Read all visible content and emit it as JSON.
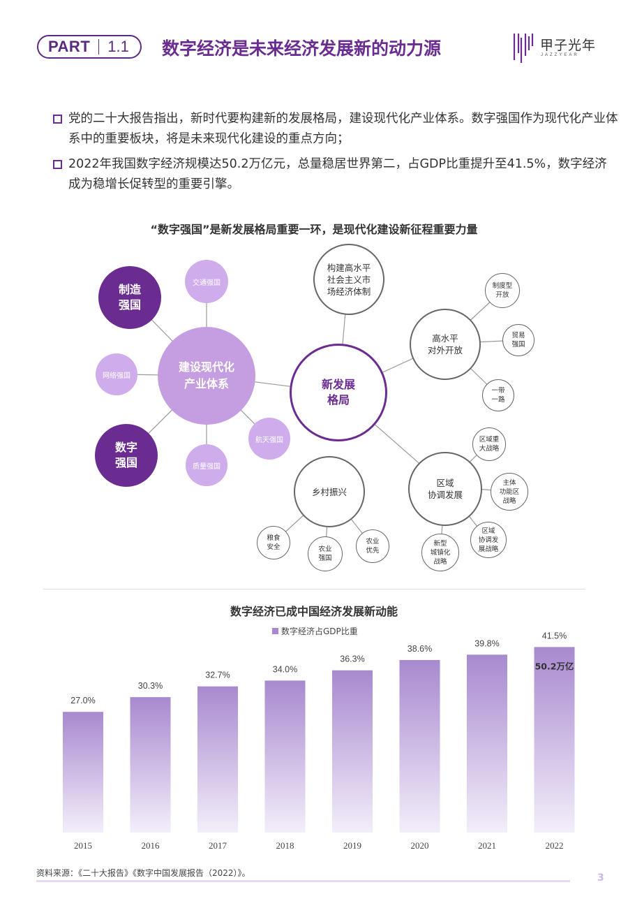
{
  "header": {
    "part_word": "PART",
    "part_num": "1.1",
    "title": "数字经济是未来经济发展新的动力源",
    "brand_cn": "甲子光年",
    "brand_en": "JAZZYEAR"
  },
  "bullets": [
    "党的二十大报告指出，新时代要构建新的发展格局，建设现代化产业体系。数字强国作为现代化产业体系中的重要板块，将是未来现代化建设的重点方向；",
    "2022年我国数字经济规模达50.2万亿元，总量稳居世界第二，占GDP比重提升至41.5%，数字经济成为稳增长促转型的重要引擎。"
  ],
  "diagram": {
    "title": "“数字强国”是新发展格局重要一环，是现代化建设新征程重要力量",
    "core": [
      "建设现代化",
      "产业体系"
    ],
    "manufacturing": [
      "制造",
      "强国"
    ],
    "digital": [
      "数字",
      "强国"
    ],
    "transport": "交通强国",
    "network": "网络强国",
    "aerospace": "航天强国",
    "quality": "质量强国",
    "new_pattern": [
      "新发展",
      "格局"
    ],
    "market": [
      "构建高水平",
      "社会主义市",
      "场经济体制"
    ],
    "opening": [
      "高水平",
      "对外开放"
    ],
    "institutional": [
      "制度型",
      "开放"
    ],
    "trade": [
      "贸易",
      "强国"
    ],
    "belt_road": [
      "一带",
      "一路"
    ],
    "regional": [
      "区域",
      "协调发展"
    ],
    "major_strategy": [
      "区域重",
      "大战略"
    ],
    "functional": [
      "主体",
      "功能区",
      "战略"
    ],
    "regional_dev": [
      "区域",
      "协调发",
      "展战略"
    ],
    "urbanization": [
      "新型",
      "城镇化",
      "战略"
    ],
    "rural": "乡村振兴",
    "grain": [
      "粮食",
      "安全"
    ],
    "agri_power": [
      "农业",
      "强国"
    ],
    "agri_first": [
      "农业",
      "优先"
    ]
  },
  "chart_data": {
    "type": "bar",
    "title": "数字经济已成中国经济发展新动能",
    "series": [
      {
        "name": "数字经济占GDP比重",
        "values": [
          27.0,
          30.3,
          32.7,
          34.0,
          36.3,
          38.6,
          39.8,
          41.5
        ]
      }
    ],
    "categories": [
      "2015",
      "2016",
      "2017",
      "2018",
      "2019",
      "2020",
      "2021",
      "2022"
    ],
    "value_labels": [
      "27.0%",
      "30.3%",
      "32.7%",
      "34.0%",
      "36.3%",
      "38.6%",
      "39.8%",
      "41.5%"
    ],
    "annotation": "50.2万亿",
    "legend_position": "top-center",
    "grid": false,
    "colors": {
      "bar_top": "#a889cf",
      "bar_bottom": "#f3eefa"
    }
  },
  "footer": {
    "source": "资料来源：《二十大报告》《数字中国发展报告（2022）》。",
    "page": "3"
  },
  "colors": {
    "brand": "#6a2c91",
    "accent_light": "#c49ee0"
  }
}
